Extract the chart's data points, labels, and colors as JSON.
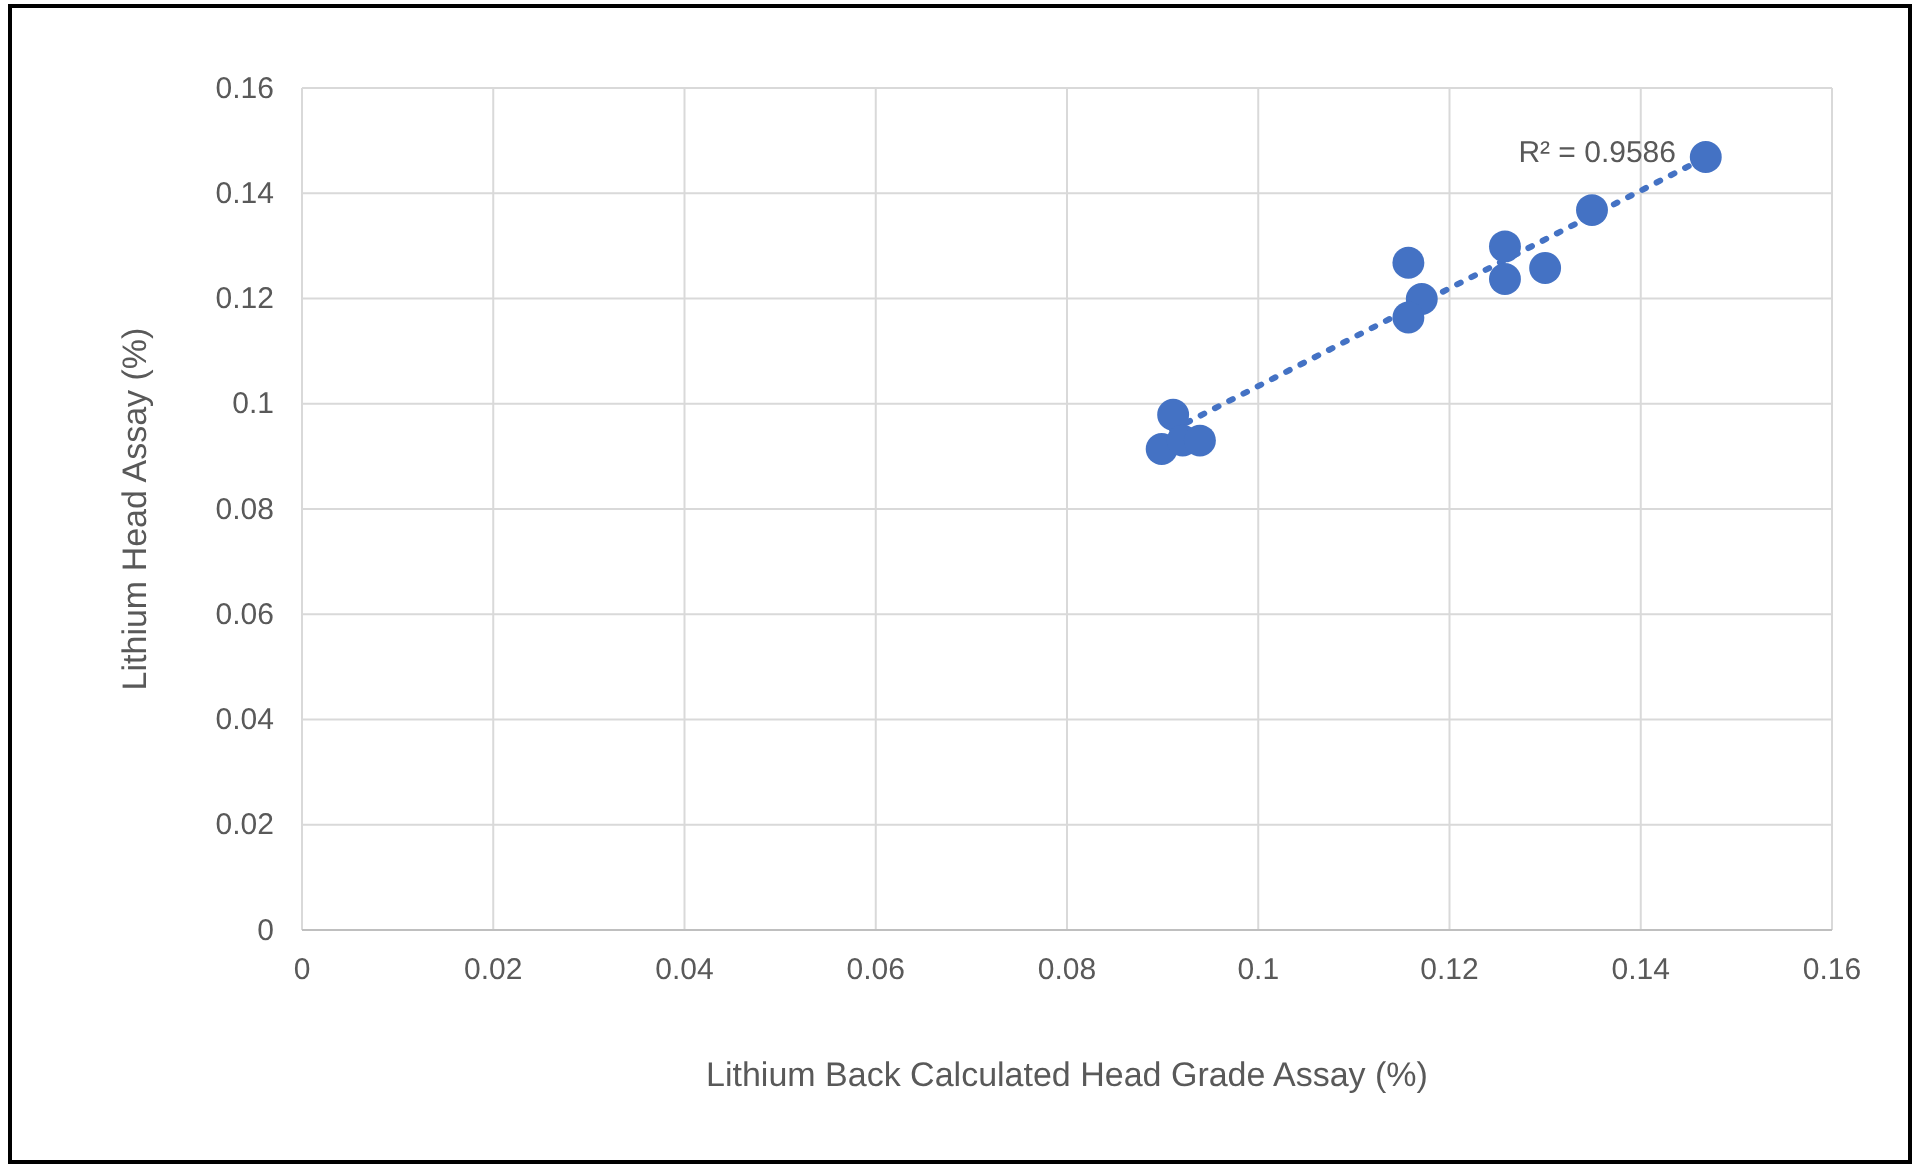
{
  "chart_data": {
    "type": "scatter",
    "xlabel": "Lithium Back Calculated Head Grade Assay (%)",
    "ylabel": "Lithium Head Assay (%)",
    "xlim": [
      0,
      0.16
    ],
    "ylim": [
      0,
      0.16
    ],
    "xticks": [
      0,
      0.02,
      0.04,
      0.06,
      0.08,
      0.1,
      0.12,
      0.14,
      0.16
    ],
    "yticks": [
      0,
      0.02,
      0.04,
      0.06,
      0.08,
      0.1,
      0.12,
      0.14,
      0.16
    ],
    "grid": true,
    "marker": "circle",
    "annotations": [
      "R² = 0.9586"
    ],
    "series": [
      {
        "color": "#4472c4",
        "x": [
          0.0899,
          0.0911,
          0.0921,
          0.0939,
          0.1157,
          0.1171,
          0.1157,
          0.1258,
          0.1258,
          0.13,
          0.1349,
          0.1468
        ],
        "values": [
          0.0914,
          0.0979,
          0.093,
          0.093,
          0.1268,
          0.1199,
          0.1164,
          0.1299,
          0.1237,
          0.1258,
          0.1368,
          0.1469
        ]
      },
      {
        "type": "line",
        "color": "#4472c4",
        "line_style": "dotted",
        "marker": "none",
        "x": [
          0.091,
          0.147
        ],
        "values": [
          0.095,
          0.147
        ]
      }
    ]
  }
}
